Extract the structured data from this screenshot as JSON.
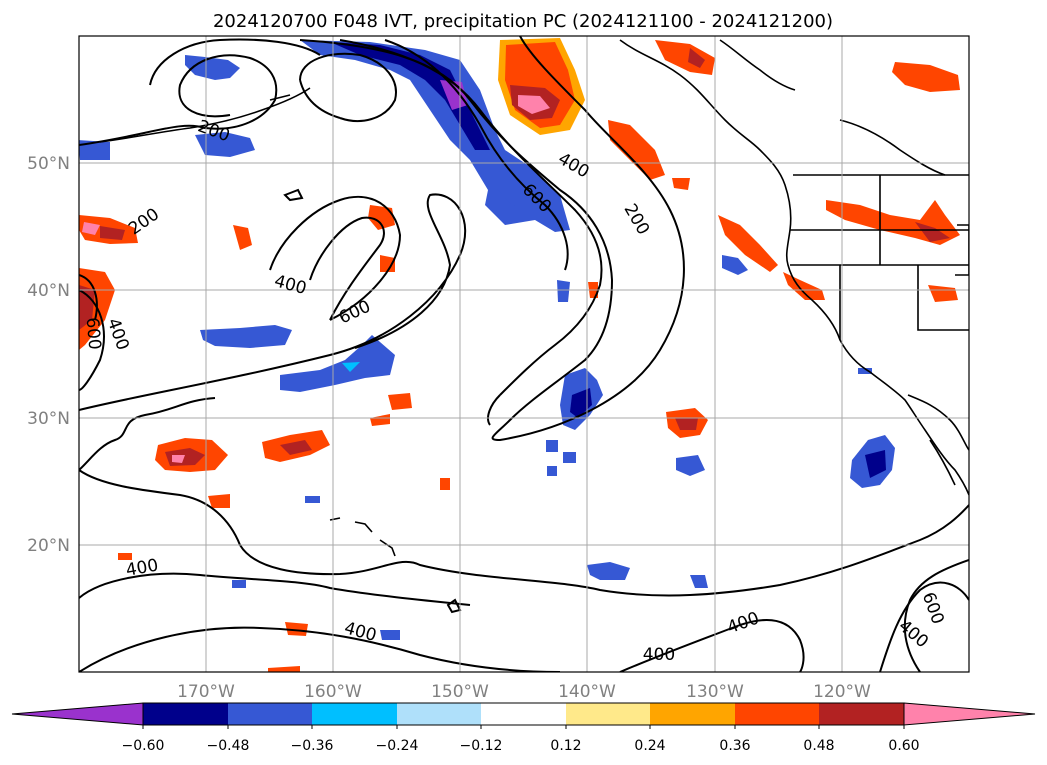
{
  "title": "2024120700 F048 IVT, precipitation PC (2024121100 - 2024121200)",
  "latitude_labels": [
    "50°N",
    "40°N",
    "30°N",
    "20°N"
  ],
  "longitude_labels": [
    "170°W",
    "160°W",
    "150°W",
    "140°W",
    "130°W",
    "120°W"
  ],
  "ivt_contour_labels": [
    "200",
    "200",
    "200",
    "400",
    "600",
    "400",
    "600",
    "400",
    "600",
    "400",
    "400",
    "400",
    "400",
    "400",
    "600",
    "400"
  ],
  "colorbar": {
    "tick_labels": [
      "−0.60",
      "−0.48",
      "−0.36",
      "−0.24",
      "−0.12",
      "0.12",
      "0.24",
      "0.36",
      "0.48",
      "0.60"
    ],
    "colors": [
      "#9a32cd",
      "#00008b",
      "#3658d4",
      "#00bfff",
      "#afe0fa",
      "#ffffff",
      "#ffe98a",
      "#ffa500",
      "#ff4500",
      "#b22222",
      "#ff82ab"
    ]
  },
  "colors": {
    "grid": "#a8a8a8",
    "contour": "#000000",
    "coast": "#000000"
  }
}
